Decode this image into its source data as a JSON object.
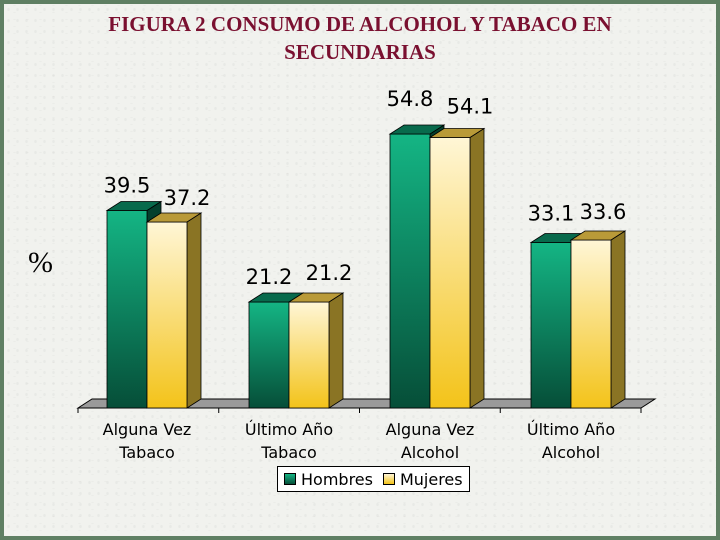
{
  "title_lines": [
    "FIGURA 2 CONSUMO DE ALCOHOL Y TABACO EN",
    "SECUNDARIAS"
  ],
  "ylabel": "%",
  "colors": {
    "hombres": "#0a8f66",
    "mujeres": "#ffe9a0",
    "title": "#7a1030"
  },
  "chart_data": {
    "type": "bar",
    "title": "FIGURA 2 CONSUMO DE ALCOHOL Y TABACO EN SECUNDARIAS",
    "ylabel": "%",
    "categories": [
      [
        "Alguna Vez",
        "Tabaco"
      ],
      [
        "Último Año",
        "Tabaco"
      ],
      [
        "Alguna Vez",
        "Alcohol"
      ],
      [
        "Último Año",
        "Alcohol"
      ]
    ],
    "series": [
      {
        "name": "Hombres",
        "values": [
          39.5,
          21.2,
          54.8,
          33.1
        ]
      },
      {
        "name": "Mujeres",
        "values": [
          37.2,
          21.2,
          54.1,
          33.6
        ]
      }
    ],
    "value_labels": {
      "Hombres": [
        "39.5",
        "21.2",
        "54.8",
        "33.1"
      ],
      "Mujeres": [
        "37.2",
        "21.2",
        "54.1",
        "33.6"
      ]
    },
    "ylim": [
      0,
      60
    ],
    "grid": false,
    "legend": "bottom",
    "style": "3d"
  }
}
